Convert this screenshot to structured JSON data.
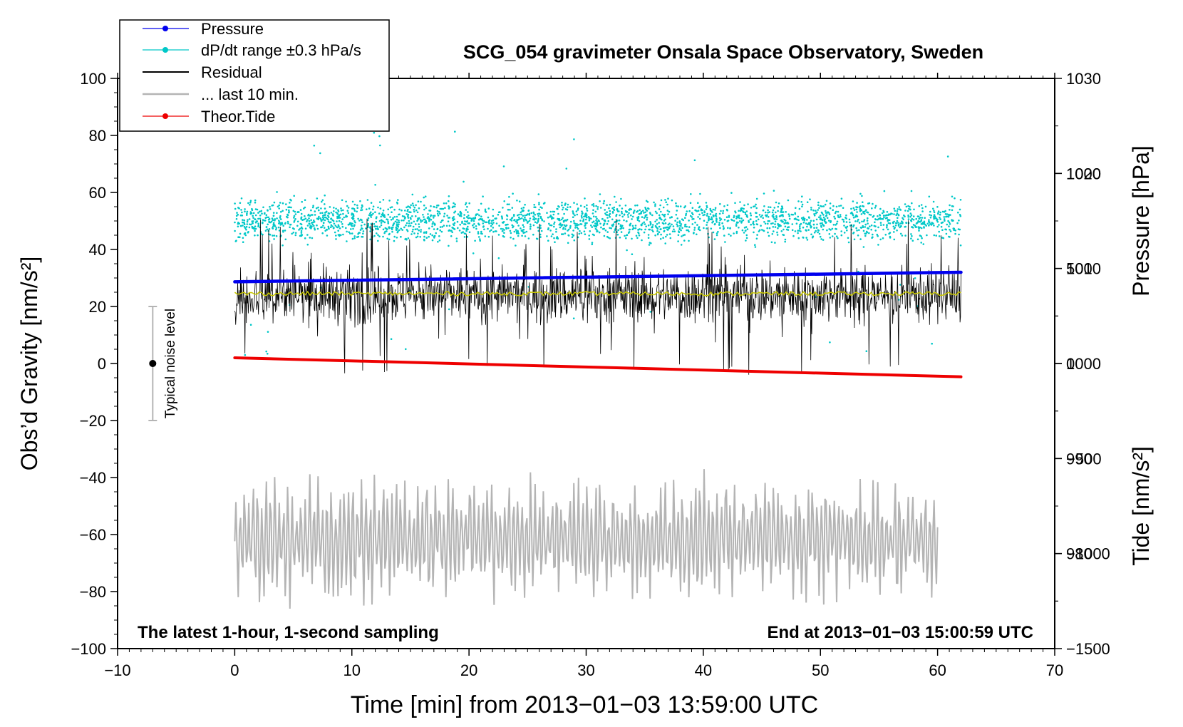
{
  "colors": {
    "pressure": "#0000ee",
    "dpdt": "#00c8c8",
    "residual": "#000000",
    "last10": "#b4b4b4",
    "tide": "#ee0000",
    "running_mean": "#c8c800",
    "noise_bar": "#b4b4b4"
  },
  "chart_data": {
    "type": "line",
    "title": "SCG_054 gravimeter Onsala Space Observatory, Sweden",
    "xlabel": "Time [min] from 2013−01−03 13:59:00 UTC",
    "ylabel_left": "Obs’d Gravity [nm/s²]",
    "ylabel_right_top": "Pressure [hPa]",
    "ylabel_right_bottom": "Tide [nm/s²]",
    "xlim": [
      -10,
      70
    ],
    "ylim": [
      -100,
      100
    ],
    "pressure_lim": [
      970,
      1030
    ],
    "tide_lim": [
      -1500,
      1500
    ],
    "x_ticks": [
      -10,
      0,
      10,
      20,
      30,
      40,
      50,
      60,
      70
    ],
    "x_tick_labels": [
      "−10",
      "0",
      "10",
      "20",
      "30",
      "40",
      "50",
      "60",
      "70"
    ],
    "y_ticks": [
      -100,
      -80,
      -60,
      -40,
      -20,
      0,
      20,
      40,
      60,
      80,
      100
    ],
    "y_tick_labels": [
      "−100",
      "−80",
      "−60",
      "−40",
      "−20",
      "0",
      "20",
      "40",
      "60",
      "80",
      "100"
    ],
    "pressure_ticks": [
      980,
      990,
      1000,
      1010,
      1020,
      1030
    ],
    "pressure_tick_labels": [
      "980",
      "990",
      "1000",
      "1010",
      "1020",
      "1030"
    ],
    "tide_ticks": [
      -1500,
      -1000,
      -500,
      0,
      500,
      1000
    ],
    "tide_tick_labels": [
      "−1500",
      "−1000",
      "−500",
      "0",
      "500",
      "1000"
    ],
    "legend": [
      "Pressure",
      "dP/dt range ±0.3 hPa/s",
      "Residual",
      "... last 10 min.",
      "Theor.Tide"
    ],
    "legend_position": "top-left",
    "annotations": {
      "bottom_left": "The latest 1-hour, 1-second sampling",
      "bottom_right": "End at 2013−01−03 15:00:59 UTC",
      "noise_label": "Typical noise level"
    },
    "noise_level": {
      "x": -7,
      "center": 0,
      "low": -20,
      "high": 20
    },
    "series": [
      {
        "name": "Pressure",
        "axis": "pressure",
        "x_start": 0,
        "x_end": 62,
        "y_start": 1008.6,
        "y_end": 1009.6
      },
      {
        "name": "dP/dt range ±0.3 hPa/s",
        "axis": "gravity",
        "x_start": 0,
        "x_end": 62,
        "center": 50,
        "spread": 5,
        "outlier_min": 2,
        "outlier_max": 96
      },
      {
        "name": "Residual",
        "axis": "gravity",
        "x_start": 0,
        "x_end": 62,
        "center": 24,
        "spread": 7,
        "spike_min": -5,
        "spike_max": 51
      },
      {
        "name": "Residual running mean",
        "axis": "gravity",
        "x_start": 0,
        "x_end": 62,
        "value": 24.5
      },
      {
        "name": "... last 10 min.",
        "axis": "gravity",
        "x_start": 0,
        "x_end": 60,
        "center": -62,
        "min": -86,
        "max": -36
      },
      {
        "name": "Theor.Tide",
        "axis": "tide",
        "x_start": 0,
        "x_end": 62,
        "y_start": 30,
        "y_end": -70
      }
    ]
  }
}
